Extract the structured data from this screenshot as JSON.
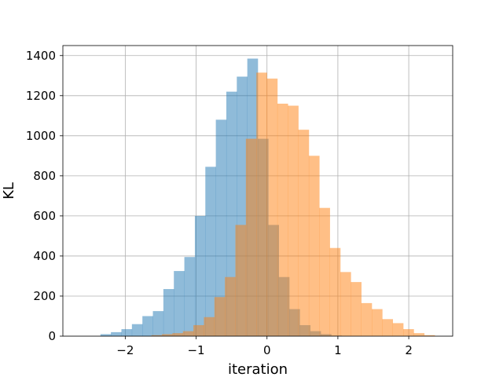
{
  "chart_data": {
    "type": "histogram",
    "xlabel": "iteration",
    "ylabel": "KL",
    "xlim": [
      -2.88,
      2.62
    ],
    "ylim": [
      0,
      1450
    ],
    "xticks": [
      -2,
      -1,
      0,
      1,
      2
    ],
    "xtick_labels": [
      "−2",
      "−1",
      "0",
      "1",
      "2"
    ],
    "yticks": [
      0,
      200,
      400,
      600,
      800,
      1000,
      1200,
      1400
    ],
    "ytick_labels": [
      "0",
      "200",
      "400",
      "600",
      "800",
      "1000",
      "1200",
      "1400"
    ],
    "grid": true,
    "bin_width": 0.148,
    "series": [
      {
        "color": "#1f77b4",
        "alpha": 0.5,
        "bin_start": -2.35,
        "values": [
          10,
          20,
          35,
          60,
          100,
          125,
          235,
          325,
          395,
          600,
          845,
          1080,
          1220,
          1295,
          1385,
          985,
          555,
          295,
          135,
          55,
          25,
          10,
          3
        ]
      },
      {
        "color": "#ff7f0e",
        "alpha": 0.5,
        "bin_start": -1.63,
        "values": [
          5,
          10,
          15,
          25,
          55,
          95,
          195,
          295,
          555,
          985,
          1315,
          1285,
          1160,
          1150,
          1030,
          900,
          640,
          440,
          320,
          270,
          165,
          135,
          85,
          65,
          35,
          15,
          5
        ]
      }
    ]
  }
}
